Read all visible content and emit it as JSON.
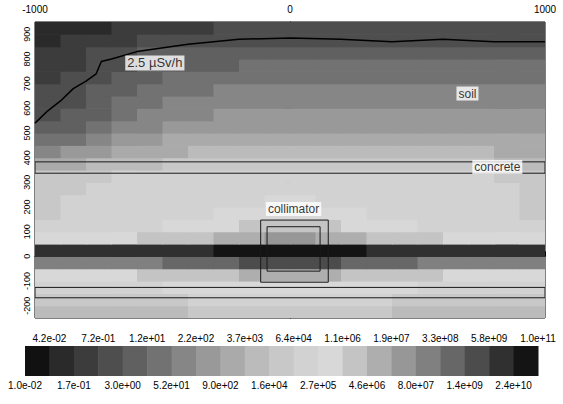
{
  "chart_data": {
    "type": "heatmap",
    "xlim": [
      -1000,
      1000
    ],
    "xticks": [
      -1000,
      0,
      1000
    ],
    "ylim": [
      -250,
      950
    ],
    "yticks": [
      -200,
      -100,
      0,
      100,
      200,
      300,
      400,
      500,
      600,
      700,
      800,
      900
    ],
    "x_edges": [
      -1000,
      -900,
      -800,
      -700,
      -600,
      -500,
      -400,
      -300,
      -200,
      -100,
      0,
      100,
      200,
      300,
      400,
      500,
      600,
      700,
      800,
      900,
      1000
    ],
    "y_edges": [
      -250,
      -200,
      -150,
      -100,
      -50,
      0,
      50,
      100,
      150,
      200,
      250,
      300,
      350,
      400,
      450,
      500,
      550,
      600,
      650,
      700,
      750,
      800,
      850,
      900,
      950
    ],
    "z": [
      [
        8000.0,
        8000.0,
        8000.0,
        8000.0,
        8000.0,
        8000.0,
        30000.0,
        30000.0,
        30000.0,
        30000.0,
        30000.0,
        30000.0,
        30000.0,
        30000.0,
        8000.0,
        8000.0,
        8000.0,
        8000.0,
        8000.0,
        8000.0
      ],
      [
        30000.0,
        30000.0,
        30000.0,
        30000.0,
        30000.0,
        30000.0,
        130000.0,
        130000.0,
        130000.0,
        130000.0,
        130000.0,
        130000.0,
        130000.0,
        130000.0,
        30000.0,
        30000.0,
        30000.0,
        30000.0,
        30000.0,
        30000.0
      ],
      [
        130000.0,
        130000.0,
        130000.0,
        130000.0,
        130000.0,
        500000.0,
        500000.0,
        500000.0,
        500000.0,
        500000.0,
        500000.0,
        500000.0,
        500000.0,
        500000.0,
        500000.0,
        130000.0,
        130000.0,
        130000.0,
        130000.0,
        130000.0
      ],
      [
        500000.0,
        500000.0,
        500000.0,
        500000.0,
        2000000.0,
        2000000.0,
        2000000.0,
        2000000.0,
        9000000.0,
        9000000.0,
        9000000.0,
        9000000.0,
        2000000.0,
        2000000.0,
        2000000.0,
        2000000.0,
        500000.0,
        500000.0,
        500000.0,
        500000.0
      ],
      [
        150000000.0,
        150000000.0,
        150000000.0,
        150000000.0,
        150000000.0,
        700000000.0,
        700000000.0,
        700000000.0,
        3000000000.0,
        3000000000.0,
        3000000000.0,
        3000000000.0,
        700000000.0,
        700000000.0,
        700000000.0,
        150000000.0,
        150000000.0,
        150000000.0,
        150000000.0,
        150000000.0
      ],
      [
        10000000000.0,
        10000000000.0,
        10000000000.0,
        10000000000.0,
        10000000000.0,
        10000000000.0,
        10000000000.0,
        50000000000.0,
        50000000000.0,
        50000000000.0,
        50000000000.0,
        50000000000.0,
        50000000000.0,
        10000000000.0,
        10000000000.0,
        10000000000.0,
        10000000000.0,
        10000000000.0,
        10000000000.0,
        10000000000.0
      ],
      [
        500000.0,
        500000.0,
        500000.0,
        500000.0,
        2000000.0,
        2000000.0,
        2000000.0,
        9000000.0,
        9000000.0,
        40000000.0,
        40000000.0,
        9000000.0,
        9000000.0,
        2000000.0,
        2000000.0,
        2000000.0,
        500000.0,
        500000.0,
        500000.0,
        500000.0
      ],
      [
        130000.0,
        130000.0,
        130000.0,
        130000.0,
        130000.0,
        500000.0,
        500000.0,
        500000.0,
        2000000.0,
        2000000.0,
        2000000.0,
        2000000.0,
        500000.0,
        500000.0,
        500000.0,
        130000.0,
        130000.0,
        130000.0,
        130000.0,
        130000.0
      ],
      [
        30000.0,
        130000.0,
        130000.0,
        130000.0,
        130000.0,
        130000.0,
        130000.0,
        500000.0,
        500000.0,
        500000.0,
        500000.0,
        500000.0,
        500000.0,
        130000.0,
        130000.0,
        130000.0,
        130000.0,
        130000.0,
        130000.0,
        30000.0
      ],
      [
        30000.0,
        130000.0,
        130000.0,
        130000.0,
        130000.0,
        130000.0,
        130000.0,
        130000.0,
        130000.0,
        500000.0,
        500000.0,
        130000.0,
        130000.0,
        130000.0,
        130000.0,
        130000.0,
        130000.0,
        130000.0,
        130000.0,
        30000.0
      ],
      [
        30000.0,
        30000.0,
        130000.0,
        130000.0,
        130000.0,
        130000.0,
        130000.0,
        130000.0,
        130000.0,
        130000.0,
        130000.0,
        130000.0,
        130000.0,
        130000.0,
        130000.0,
        130000.0,
        130000.0,
        130000.0,
        130000.0,
        30000.0
      ],
      [
        30000.0,
        30000.0,
        30000.0,
        130000.0,
        130000.0,
        130000.0,
        130000.0,
        130000.0,
        130000.0,
        130000.0,
        130000.0,
        130000.0,
        130000.0,
        130000.0,
        130000.0,
        130000.0,
        130000.0,
        130000.0,
        30000.0,
        30000.0
      ],
      [
        2000,
        2000,
        8000.0,
        8000.0,
        8000.0,
        30000.0,
        30000.0,
        30000.0,
        30000.0,
        30000.0,
        30000.0,
        30000.0,
        30000.0,
        30000.0,
        30000.0,
        30000.0,
        30000.0,
        30000.0,
        8000.0,
        8000.0
      ],
      [
        100,
        450,
        450,
        2000,
        2000,
        2000,
        8000.0,
        8000.0,
        8000.0,
        8000.0,
        8000.0,
        8000.0,
        8000.0,
        8000.0,
        8000.0,
        8000.0,
        8000.0,
        8000.0,
        2000,
        2000
      ],
      [
        25,
        25,
        100,
        450,
        450,
        2000,
        2000,
        2000,
        2000,
        2000,
        2000,
        2000,
        2000,
        2000,
        2000,
        2000,
        2000,
        2000,
        2000,
        2000
      ],
      [
        6,
        6,
        25,
        100,
        100,
        450,
        450,
        450,
        450,
        450,
        450,
        450,
        450,
        450,
        450,
        450,
        450,
        450,
        450,
        450
      ],
      [
        1.5,
        6,
        6,
        25,
        100,
        100,
        100,
        450,
        450,
        450,
        450,
        450,
        450,
        450,
        450,
        450,
        450,
        450,
        450,
        450
      ],
      [
        1.5,
        1.5,
        6,
        25,
        25,
        100,
        100,
        100,
        100,
        100,
        100,
        100,
        100,
        100,
        100,
        100,
        100,
        100,
        100,
        100
      ],
      [
        1.5,
        1.5,
        6,
        6,
        25,
        25,
        25,
        100,
        100,
        100,
        100,
        100,
        100,
        100,
        100,
        100,
        100,
        100,
        100,
        100
      ],
      [
        0.3,
        1.5,
        1.5,
        6,
        6,
        25,
        25,
        25,
        25,
        25,
        25,
        25,
        25,
        25,
        25,
        25,
        25,
        25,
        25,
        25
      ],
      [
        0.3,
        0.3,
        1.5,
        1.5,
        6,
        6,
        6,
        6,
        25,
        25,
        25,
        25,
        25,
        25,
        25,
        25,
        25,
        25,
        25,
        25
      ],
      [
        0.3,
        0.3,
        1.5,
        1.5,
        6,
        6,
        6,
        6,
        6,
        6,
        6,
        6,
        6,
        6,
        6,
        6,
        6,
        6,
        6,
        6
      ],
      [
        0.08,
        0.3,
        0.3,
        0.3,
        1.5,
        1.5,
        1.5,
        1.5,
        1.5,
        1.5,
        1.5,
        1.5,
        1.5,
        1.5,
        1.5,
        1.5,
        1.5,
        1.5,
        1.5,
        1.5
      ],
      [
        0.08,
        0.08,
        0.08,
        0.3,
        0.3,
        0.3,
        0.3,
        1.5,
        1.5,
        1.5,
        1.5,
        1.5,
        1.5,
        1.5,
        1.5,
        1.5,
        1.5,
        1.5,
        1.5,
        1.5
      ]
    ],
    "colorbar": {
      "ticks": [
        {
          "value": 0.01,
          "label": "1.0e-02"
        },
        {
          "value": 0.042,
          "label": "4.2e-02"
        },
        {
          "value": 0.17,
          "label": "1.7e-01"
        },
        {
          "value": 0.72,
          "label": "7.2e-01"
        },
        {
          "value": 3.0,
          "label": "3.0e+00"
        },
        {
          "value": 12,
          "label": "1.2e+01"
        },
        {
          "value": 52,
          "label": "5.2e+01"
        },
        {
          "value": 220,
          "label": "2.2e+02"
        },
        {
          "value": 900,
          "label": "9.0e+02"
        },
        {
          "value": 3700,
          "label": "3.7e+03"
        },
        {
          "value": 16000,
          "label": "1.6e+04"
        },
        {
          "value": 64000,
          "label": "6.4e+04"
        },
        {
          "value": 270000,
          "label": "2.7e+05"
        },
        {
          "value": 1100000,
          "label": "1.1e+06"
        },
        {
          "value": 4600000,
          "label": "4.6e+06"
        },
        {
          "value": 19000000,
          "label": "1.9e+07"
        },
        {
          "value": 80000000,
          "label": "8.0e+07"
        },
        {
          "value": 330000000,
          "label": "3.3e+08"
        },
        {
          "value": 1400000000,
          "label": "1.4e+09"
        },
        {
          "value": 5800000000,
          "label": "5.8e+09"
        },
        {
          "value": 24000000000,
          "label": "2.4e+10"
        },
        {
          "value": 100000000000,
          "label": "1.0e+11"
        }
      ]
    },
    "contour": {
      "label": "2.5 µSv/h",
      "x": [
        -1000,
        -950,
        -900,
        -850,
        -800,
        -760,
        -740,
        -700,
        -600,
        -400,
        -200,
        0,
        200,
        400,
        600,
        800,
        1000
      ],
      "y": [
        540,
        590,
        630,
        680,
        710,
        740,
        790,
        800,
        830,
        860,
        880,
        885,
        880,
        870,
        880,
        870,
        870
      ],
      "label_x": -530,
      "label_y": 784
    },
    "annotations": [
      {
        "text": "soil",
        "x": 696,
        "y": 660
      },
      {
        "text": "concrete",
        "x": 813,
        "y": 362
      },
      {
        "text": "collimator",
        "x": 14,
        "y": 192
      }
    ],
    "outlines": [
      [
        -1000,
        337,
        1000,
        383
      ],
      [
        -1000,
        -168,
        1000,
        -126
      ],
      [
        -115,
        -105,
        150,
        147
      ],
      [
        -90,
        -60,
        118,
        120
      ]
    ]
  }
}
